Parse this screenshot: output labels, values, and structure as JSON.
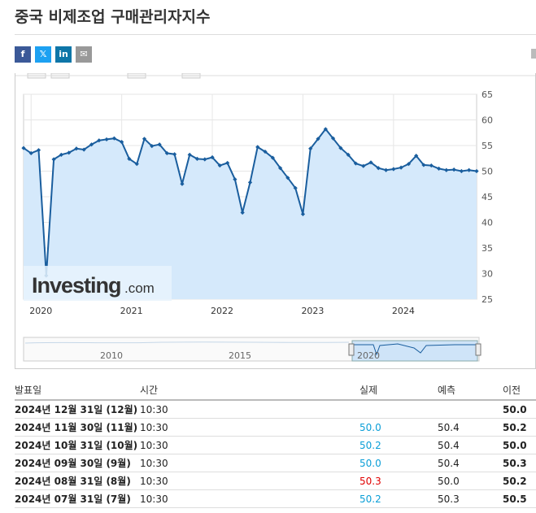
{
  "page": {
    "title": "중국 비제조업 구매관리자지수"
  },
  "share": [
    {
      "name": "facebook",
      "glyph": "f",
      "color": "#3b5998"
    },
    {
      "name": "twitter",
      "glyph": "𝕏",
      "color": "#1da1f2"
    },
    {
      "name": "linkedin",
      "glyph": "in",
      "color": "#0e76a8"
    },
    {
      "name": "email",
      "glyph": "✉",
      "color": "#999999"
    }
  ],
  "chart_data": {
    "type": "area",
    "ylim": [
      25,
      65
    ],
    "yticks": [
      "65",
      "60",
      "55",
      "50",
      "45",
      "40",
      "35",
      "30",
      "25"
    ],
    "xlim": [
      2019.917,
      2024.917
    ],
    "xticks": [
      "2020",
      "2021",
      "2022",
      "2023",
      "2024"
    ],
    "x": [
      2019.917,
      2020.0,
      2020.083,
      2020.167,
      2020.25,
      2020.333,
      2020.417,
      2020.5,
      2020.583,
      2020.667,
      2020.75,
      2020.833,
      2020.917,
      2021.0,
      2021.083,
      2021.167,
      2021.25,
      2021.333,
      2021.417,
      2021.5,
      2021.583,
      2021.667,
      2021.75,
      2021.833,
      2021.917,
      2022.0,
      2022.083,
      2022.167,
      2022.25,
      2022.333,
      2022.417,
      2022.5,
      2022.583,
      2022.667,
      2022.75,
      2022.833,
      2022.917,
      2023.0,
      2023.083,
      2023.167,
      2023.25,
      2023.333,
      2023.417,
      2023.5,
      2023.583,
      2023.667,
      2023.75,
      2023.833,
      2023.917,
      2024.0,
      2024.083,
      2024.167,
      2024.25,
      2024.333,
      2024.417,
      2024.5,
      2024.583,
      2024.667,
      2024.75,
      2024.833,
      2024.917
    ],
    "values": [
      54.5,
      53.5,
      54.1,
      29.6,
      52.3,
      53.2,
      53.6,
      54.4,
      54.2,
      55.2,
      56.0,
      56.2,
      56.4,
      55.7,
      52.4,
      51.4,
      56.3,
      54.9,
      55.2,
      53.5,
      53.3,
      47.5,
      53.2,
      52.4,
      52.3,
      52.7,
      51.1,
      51.6,
      48.4,
      41.9,
      47.8,
      54.7,
      53.8,
      52.6,
      50.6,
      48.7,
      46.7,
      41.6,
      54.4,
      56.3,
      58.2,
      56.4,
      54.5,
      53.2,
      51.5,
      51.0,
      51.7,
      50.6,
      50.2,
      50.4,
      50.7,
      51.4,
      53.0,
      51.2,
      51.1,
      50.5,
      50.2,
      50.3,
      50.0,
      50.2,
      50.0
    ],
    "logo_text_main": "Investing",
    "logo_text_suffix": ".com",
    "navigator_labels": [
      "2010",
      "2015",
      "2020"
    ],
    "line_color": "#1a5e9e",
    "fill_color": "#d5e9fb"
  },
  "table": {
    "headers": {
      "date": "발표일",
      "time": "시간",
      "actual": "실제",
      "forecast": "예측",
      "previous": "이전"
    },
    "rows": [
      {
        "date": "2024년 12월 31일 (12월)",
        "time": "10:30",
        "actual": "",
        "actual_color": "#0a9ed7",
        "forecast": "",
        "previous": "50.0"
      },
      {
        "date": "2024년 11월 30일 (11월)",
        "time": "10:30",
        "actual": "50.0",
        "actual_color": "#0a9ed7",
        "forecast": "50.4",
        "previous": "50.2"
      },
      {
        "date": "2024년 10월 31일 (10월)",
        "time": "10:30",
        "actual": "50.2",
        "actual_color": "#0a9ed7",
        "forecast": "50.4",
        "previous": "50.0"
      },
      {
        "date": "2024년 09월 30일 (9월)",
        "time": "10:30",
        "actual": "50.0",
        "actual_color": "#0a9ed7",
        "forecast": "50.4",
        "previous": "50.3"
      },
      {
        "date": "2024년 08월 31일 (8월)",
        "time": "10:30",
        "actual": "50.3",
        "actual_color": "#e00000",
        "forecast": "50.0",
        "previous": "50.2"
      },
      {
        "date": "2024년 07월 31일 (7월)",
        "time": "10:30",
        "actual": "50.2",
        "actual_color": "#0a9ed7",
        "forecast": "50.3",
        "previous": "50.5"
      }
    ]
  }
}
